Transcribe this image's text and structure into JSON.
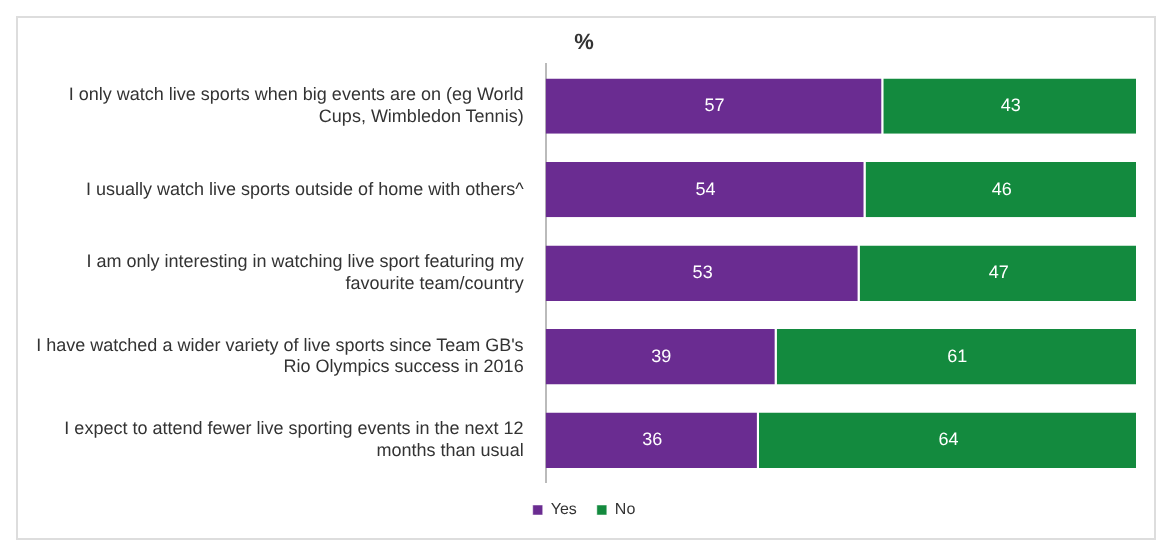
{
  "chart_data": {
    "type": "bar",
    "title": "%",
    "orientation": "horizontal",
    "stacked": true,
    "data_labels": true,
    "grid": false,
    "legend": "bottom",
    "tick_labels": "y",
    "categories": [
      "I only watch live sports when big events are on (eg World Cups, Wimbledon Tennis)",
      "I usually watch live sports outside of home with others^",
      "I am only interesting in watching live sport featuring my favourite team/country",
      "I have watched a wider variety of live sports since Team GB's Rio Olympics success in 2016",
      "I expect to attend fewer live sporting events in the next 12 months than usual"
    ],
    "series": [
      {
        "name": "Yes",
        "color": "#6a2c91",
        "values": [
          57,
          54,
          53,
          39,
          36
        ]
      },
      {
        "name": "No",
        "color": "#138a3e",
        "values": [
          43,
          46,
          47,
          61,
          64
        ]
      }
    ]
  }
}
